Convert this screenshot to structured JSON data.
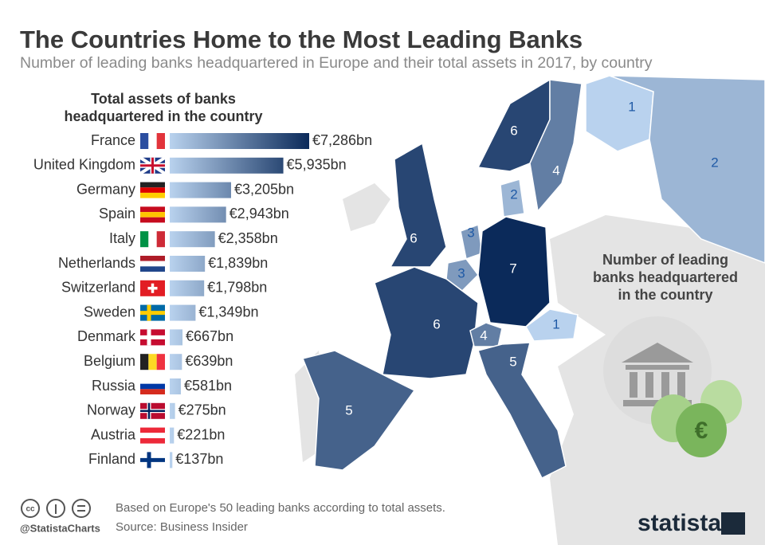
{
  "header": {
    "title": "The Countries Home to the Most Leading Banks",
    "subtitle": "Number of leading banks headquartered in Europe and their total assets in 2017, by country"
  },
  "chart_data": [
    {
      "type": "bar",
      "orientation": "horizontal",
      "title_lines": [
        "Total assets of banks",
        "headquartered in the country"
      ],
      "categories": [
        "France",
        "United Kingdom",
        "Germany",
        "Spain",
        "Italy",
        "Netherlands",
        "Switzerland",
        "Sweden",
        "Denmark",
        "Belgium",
        "Russia",
        "Norway",
        "Austria",
        "Finland"
      ],
      "values": [
        7286,
        5935,
        3205,
        2943,
        2358,
        1839,
        1798,
        1349,
        667,
        639,
        581,
        275,
        221,
        137
      ],
      "value_labels": [
        "€7,286bn",
        "€5,935bn",
        "€3,205bn",
        "€2,943bn",
        "€2,358bn",
        "€1,839bn",
        "€1,798bn",
        "€1,349bn",
        "€667bn",
        "€639bn",
        "€581bn",
        "€275bn",
        "€221bn",
        "€137bn"
      ],
      "color_light": "#b9d2ee",
      "color_dark": "#0b2a5a"
    },
    {
      "type": "map",
      "title_lines": [
        "Number of leading",
        "banks headquartered",
        "in the country"
      ],
      "values": [
        6,
        4,
        1,
        2,
        2,
        6,
        3,
        3,
        7,
        6,
        4,
        1,
        5,
        5
      ]
    }
  ],
  "footer": {
    "note": "Based on Europe's 50 leading banks according to total assets.",
    "source": "Source: Business Insider",
    "handle": "@StatistaCharts",
    "brand": "statista"
  }
}
